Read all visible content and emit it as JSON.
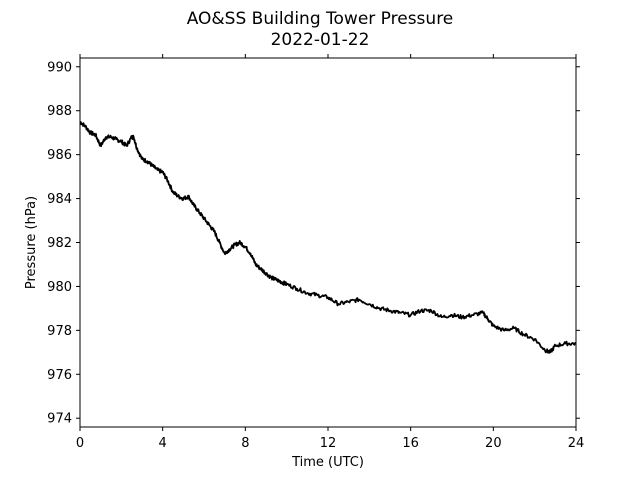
{
  "chart_data": {
    "type": "line",
    "title": "AO&SS Building Tower Pressure",
    "subtitle": "2022-01-22",
    "xlabel": "Time (UTC)",
    "ylabel": "Pressure (hPa)",
    "xlim": [
      0,
      24
    ],
    "ylim": [
      973.6,
      990.4
    ],
    "xticks": [
      0,
      4,
      8,
      12,
      16,
      20,
      24
    ],
    "yticks": [
      974,
      976,
      978,
      980,
      982,
      984,
      986,
      988,
      990
    ],
    "grid": false,
    "legend": "none",
    "series": [
      {
        "color": "#000000",
        "x": [
          0,
          0.25,
          0.5,
          0.75,
          1.0,
          1.25,
          1.5,
          1.75,
          2.0,
          2.25,
          2.5,
          2.6,
          2.75,
          3.0,
          3.25,
          3.5,
          3.75,
          4.0,
          4.25,
          4.5,
          4.75,
          5.0,
          5.25,
          5.5,
          5.75,
          6.0,
          6.25,
          6.5,
          6.75,
          7.0,
          7.25,
          7.5,
          7.75,
          8.0,
          8.25,
          8.5,
          8.75,
          9.0,
          9.25,
          9.5,
          9.75,
          10.0,
          10.5,
          11.0,
          11.5,
          12.0,
          12.5,
          13.0,
          13.5,
          14.0,
          14.5,
          15.0,
          15.5,
          16.0,
          16.5,
          17.0,
          17.5,
          18.0,
          18.5,
          19.0,
          19.5,
          19.75,
          20.0,
          20.5,
          21.0,
          21.5,
          22.0,
          22.5,
          22.75,
          23.0,
          23.5,
          24.0
        ],
        "values": [
          987.5,
          987.3,
          987.0,
          986.9,
          986.4,
          986.8,
          986.8,
          986.7,
          986.6,
          986.4,
          986.8,
          986.8,
          986.3,
          985.8,
          985.7,
          985.5,
          985.3,
          985.2,
          984.8,
          984.3,
          984.1,
          984.0,
          984.1,
          983.7,
          983.4,
          983.1,
          982.8,
          982.5,
          982.0,
          981.5,
          981.7,
          981.9,
          982.0,
          981.8,
          981.5,
          981.0,
          980.8,
          980.6,
          980.4,
          980.3,
          980.2,
          980.1,
          979.9,
          979.7,
          979.6,
          979.5,
          979.2,
          979.3,
          979.4,
          979.2,
          979.0,
          978.9,
          978.8,
          978.7,
          978.9,
          978.9,
          978.6,
          978.7,
          978.6,
          978.7,
          978.8,
          978.5,
          978.2,
          978.0,
          978.1,
          977.8,
          977.6,
          977.1,
          977.0,
          977.3,
          977.4,
          977.4
        ]
      }
    ]
  }
}
